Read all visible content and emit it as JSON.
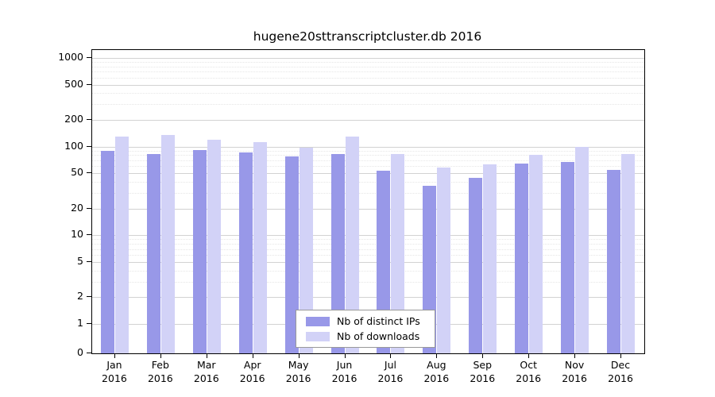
{
  "chart_data": {
    "type": "bar",
    "title": "hugene20sttranscriptcluster.db 2016",
    "categories": [
      "Jan",
      "Feb",
      "Mar",
      "Apr",
      "May",
      "Jun",
      "Jul",
      "Aug",
      "Sep",
      "Oct",
      "Nov",
      "Dec"
    ],
    "year": "2016",
    "series": [
      {
        "name": "Nb of distinct IPs",
        "color": "#9898e8",
        "values": [
          90,
          82,
          92,
          85,
          78,
          83,
          54,
          36,
          44,
          65,
          67,
          55
        ]
      },
      {
        "name": "Nb of downloads",
        "color": "#d2d2f7",
        "values": [
          130,
          135,
          120,
          112,
          97,
          130,
          82,
          58,
          63,
          80,
          100,
          83
        ]
      }
    ],
    "yscale": "log",
    "ylim": [
      0,
      1000
    ],
    "yticks": [
      0,
      1,
      2,
      5,
      10,
      20,
      50,
      100,
      200,
      500,
      1000
    ],
    "minor_gridlines": [
      3,
      4,
      6,
      7,
      8,
      9,
      30,
      40,
      60,
      70,
      80,
      90,
      300,
      400,
      600,
      700,
      800,
      900
    ],
    "grid": true,
    "legend_position": "bottom-center"
  }
}
